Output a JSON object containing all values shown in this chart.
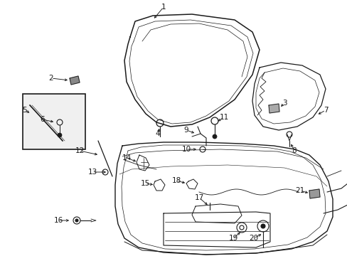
{
  "bg_color": "#ffffff",
  "line_color": "#1a1a1a",
  "fig_width": 4.89,
  "fig_height": 3.6,
  "dpi": 100,
  "label_fontsize": 7.5
}
